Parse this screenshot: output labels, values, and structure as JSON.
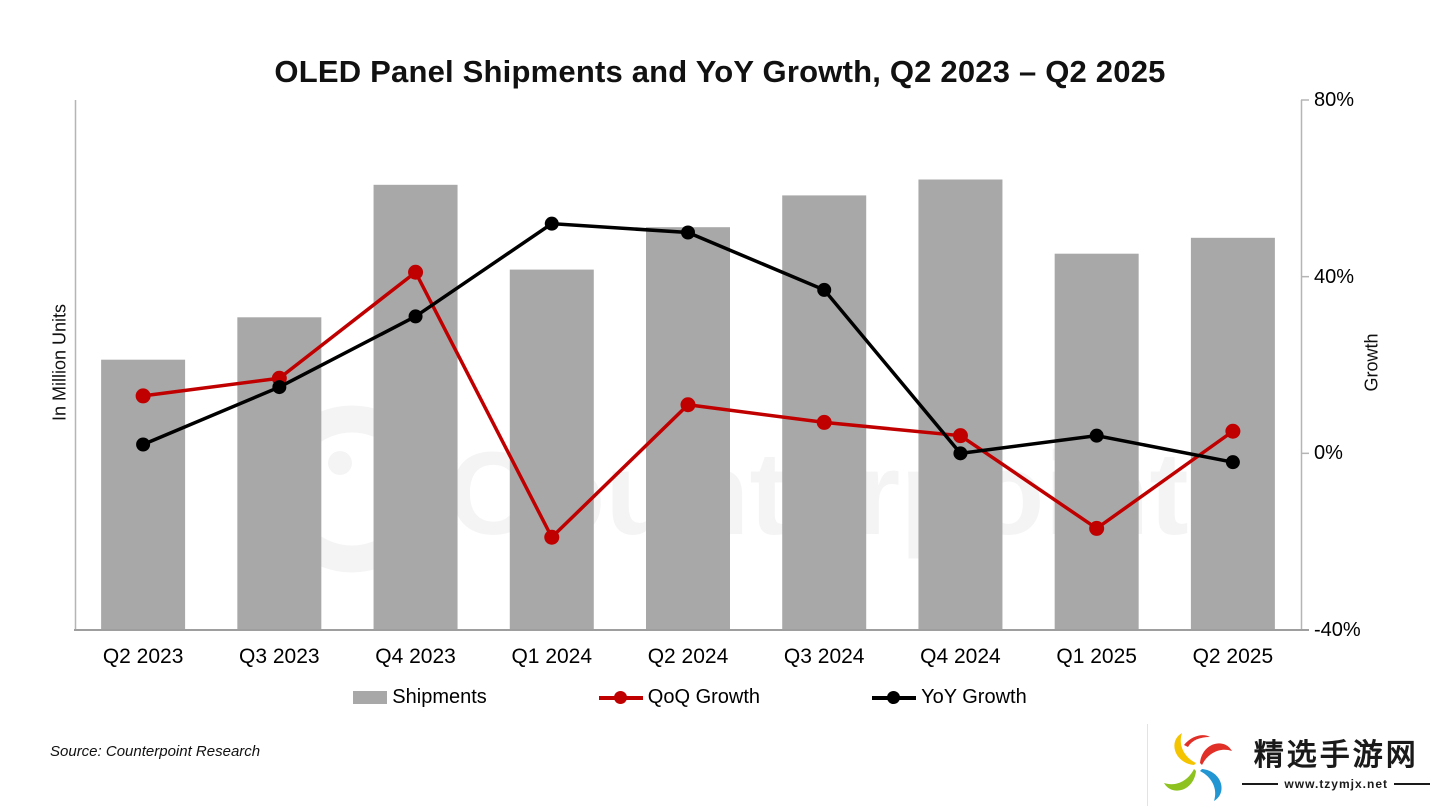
{
  "title": "OLED Panel Shipments and YoY Growth, Q2 2023 – Q2 2025",
  "left_axis_label": "In Million Units",
  "right_axis_label": "Growth",
  "source": "Source: Counterpoint Research",
  "watermark_text": "Counterpoint",
  "legend": [
    {
      "label": "Shipments",
      "color": "#a8a8a8",
      "marker": "bar"
    },
    {
      "label": "QoQ Growth",
      "color": "#c00000",
      "marker": "line-dot"
    },
    {
      "label": "YoY Growth",
      "color": "#000000",
      "marker": "line-dot"
    }
  ],
  "colors": {
    "bar": "#a8a8a8",
    "qoq_line": "#c00000",
    "yoy_line": "#000000",
    "axis": "#b5b5b5",
    "axis_bottom": "#9e9e9e",
    "watermark": "rgba(0,0,0,0.045)"
  },
  "logo": {
    "site_name": "精选手游网",
    "site_url": "www.tzymjx.net"
  },
  "chart_data": {
    "type": "combo: bar + line",
    "title": "OLED Panel Shipments and YoY Growth, Q2 2023 – Q2 2025",
    "categories": [
      "Q2 2023",
      "Q3 2023",
      "Q4 2023",
      "Q1 2024",
      "Q2 2024",
      "Q3 2024",
      "Q4 2024",
      "Q1 2025",
      "Q2 2025"
    ],
    "series": [
      {
        "name": "Shipments",
        "type": "bar",
        "axis": "left",
        "note": "left axis shows no numeric ticks; values are estimated relative index 0-100 of plot height",
        "values": [
          51,
          59,
          84,
          68,
          76,
          82,
          85,
          71,
          74
        ]
      },
      {
        "name": "QoQ Growth",
        "type": "line",
        "axis": "right",
        "unit": "%",
        "values": [
          13,
          17,
          41,
          -19,
          11,
          7,
          4,
          -17,
          5
        ]
      },
      {
        "name": "YoY Growth",
        "type": "line",
        "axis": "right",
        "unit": "%",
        "values": [
          2,
          15,
          31,
          52,
          50,
          37,
          0,
          4,
          -2
        ]
      }
    ],
    "left_axis": {
      "label": "In Million Units",
      "tick_labels_shown": false,
      "range_relative": [
        0,
        100
      ]
    },
    "right_axis": {
      "label": "Growth",
      "min": -40,
      "max": 80,
      "ticks": [
        {
          "v": 80,
          "label": "80%"
        },
        {
          "v": 40,
          "label": "40%"
        },
        {
          "v": 0,
          "label": "0%"
        },
        {
          "v": -40,
          "label": "-40%"
        }
      ]
    },
    "grid": false,
    "legend_position": "bottom"
  }
}
